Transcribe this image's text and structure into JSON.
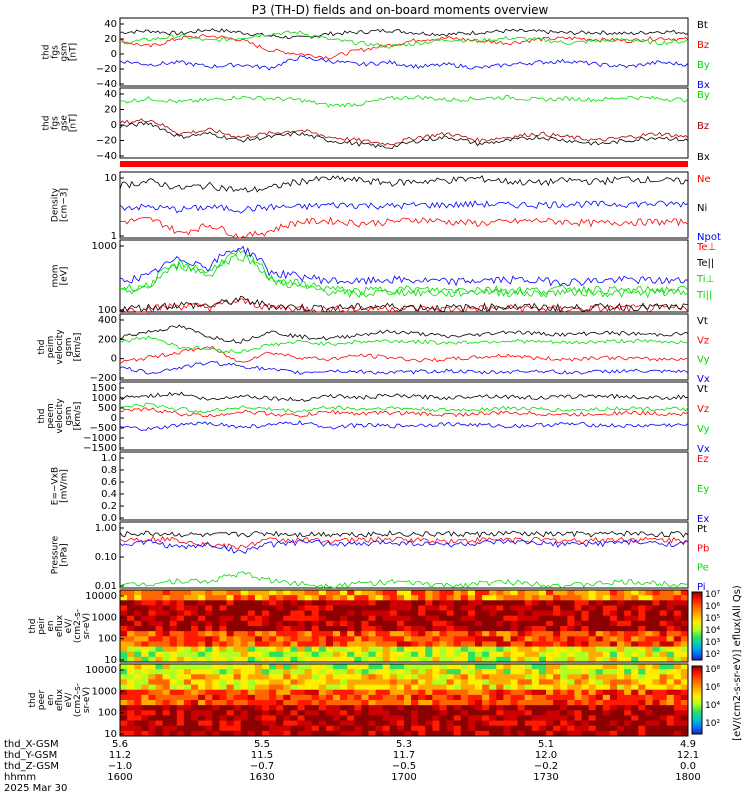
{
  "title": "P3 (TH-D) fields and on-board moments overview",
  "chart_data": [
    {
      "type": "line",
      "panel": "fgs_gsm",
      "ylabel": [
        "thd",
        "fgs",
        "gsm",
        "[nT]"
      ],
      "yticks": [
        "40",
        "20",
        "0",
        "−20",
        "−40"
      ],
      "ylim": [
        -45,
        50
      ],
      "series": [
        {
          "name": "Bt",
          "color": "#000000",
          "values": [
            30,
            32,
            28,
            34,
            30,
            25,
            22,
            28,
            30,
            33,
            29,
            27,
            30,
            32,
            31,
            29,
            30,
            28,
            31,
            30
          ]
        },
        {
          "name": "Bz",
          "color": "#ff0000",
          "values": [
            18,
            10,
            22,
            25,
            20,
            5,
            0,
            -5,
            5,
            12,
            20,
            22,
            18,
            15,
            20,
            22,
            20,
            18,
            22,
            20
          ]
        },
        {
          "name": "By",
          "color": "#00dd00",
          "values": [
            15,
            20,
            25,
            18,
            22,
            28,
            30,
            20,
            15,
            10,
            15,
            20,
            18,
            22,
            20,
            15,
            18,
            20,
            15,
            18
          ]
        },
        {
          "name": "Bx",
          "color": "#0000ff",
          "values": [
            -10,
            -15,
            -12,
            -18,
            -15,
            -20,
            -5,
            -10,
            -15,
            -12,
            -18,
            -15,
            -20,
            -15,
            -12,
            -10,
            -15,
            -18,
            -12,
            -15
          ]
        }
      ]
    },
    {
      "type": "line",
      "panel": "fgs_gse",
      "ylabel": [
        "thd",
        "fgs",
        "gse",
        "[nT]"
      ],
      "yticks": [
        "40",
        "20",
        "0",
        "−20",
        "−40"
      ],
      "ylim": [
        -55,
        45
      ],
      "series": [
        {
          "name": "By",
          "color": "#00dd00",
          "values": [
            25,
            30,
            25,
            28,
            32,
            30,
            28,
            20,
            22,
            30,
            32,
            28,
            30,
            32,
            28,
            30,
            28,
            32,
            30,
            28
          ]
        },
        {
          "name": "Bz",
          "color": "#aa0000",
          "values": [
            -5,
            0,
            -20,
            -15,
            -25,
            -20,
            -15,
            -25,
            -30,
            -35,
            -25,
            -20,
            -30,
            -25,
            -20,
            -25,
            -30,
            -25,
            -20,
            -25
          ]
        },
        {
          "name": "Bx",
          "color": "#000000",
          "values": [
            -10,
            -5,
            -25,
            -20,
            -30,
            -25,
            -20,
            -30,
            -35,
            -40,
            -30,
            -25,
            -35,
            -30,
            -25,
            -30,
            -35,
            -30,
            -25,
            -30
          ]
        }
      ]
    },
    {
      "type": "line",
      "panel": "density",
      "ylabel": [
        "Density",
        "[cm−3]"
      ],
      "yticks": [
        "10",
        "1"
      ],
      "scale": "log",
      "ylim": [
        0.3,
        40
      ],
      "series": [
        {
          "name": "Ne",
          "color": "#ff0000",
          "values": [
            1,
            1.2,
            0.4,
            0.8,
            0.3,
            0.5,
            1,
            1.1,
            0.9,
            1,
            1.2,
            1,
            0.9,
            1,
            1.1,
            1,
            0.9,
            1,
            1,
            1
          ]
        },
        {
          "name": "Ni",
          "color": "#000000",
          "values": [
            15,
            20,
            12,
            15,
            10,
            12,
            20,
            25,
            22,
            18,
            20,
            22,
            25,
            20,
            18,
            22,
            20,
            25,
            22,
            20
          ]
        },
        {
          "name": "Npot",
          "color": "#0000ff",
          "values": [
            3,
            3,
            2.5,
            3,
            2.5,
            3,
            3,
            3.5,
            3.5,
            3.2,
            3.5,
            3.5,
            3.8,
            3.5,
            3.6,
            3.8,
            3.7,
            3.8,
            3.8,
            3.8
          ]
        }
      ]
    },
    {
      "type": "line",
      "panel": "moments_temperature",
      "ylabel": [
        "mom",
        "[eV]"
      ],
      "yticks": [
        "1000",
        "100"
      ],
      "scale": "log",
      "ylim": [
        40,
        4000
      ],
      "series": [
        {
          "name": "Te⊥",
          "color": "#ff0000",
          "values": [
            45,
            50,
            60,
            55,
            80,
            55,
            50,
            48,
            50,
            52,
            50,
            48,
            50,
            52,
            50,
            48,
            50,
            52,
            50,
            50
          ]
        },
        {
          "name": "Te||",
          "color": "#000000",
          "values": [
            50,
            55,
            65,
            60,
            90,
            60,
            55,
            52,
            55,
            58,
            55,
            52,
            55,
            58,
            55,
            52,
            55,
            58,
            55,
            55
          ]
        },
        {
          "name": "Ti⊥",
          "color": "#00dd00",
          "values": [
            150,
            180,
            800,
            400,
            1500,
            300,
            200,
            150,
            120,
            150,
            140,
            130,
            150,
            140,
            130,
            150,
            140,
            130,
            140,
            140
          ]
        },
        {
          "name": "Ti||",
          "color": "#00dd00",
          "values": [
            180,
            220,
            900,
            500,
            1800,
            350,
            250,
            180,
            150,
            180,
            170,
            160,
            180,
            170,
            160,
            180,
            170,
            160,
            170,
            170
          ]
        },
        {
          "name": "",
          "color": "#0000ff",
          "values": [
            300,
            400,
            1200,
            700,
            2500,
            500,
            400,
            300,
            280,
            320,
            300,
            280,
            300,
            320,
            300,
            280,
            300,
            320,
            300,
            300
          ]
        }
      ]
    },
    {
      "type": "line",
      "panel": "peim_velocity",
      "ylabel": [
        "thd",
        "peim",
        "velocity",
        "gsm",
        "[km/s]"
      ],
      "yticks": [
        "400",
        "200",
        "0",
        "−200"
      ],
      "ylim": [
        -220,
        420
      ],
      "series": [
        {
          "name": "Vt",
          "color": "#000000",
          "values": [
            200,
            250,
            300,
            200,
            150,
            250,
            200,
            180,
            220,
            250,
            230,
            200,
            220,
            250,
            230,
            220,
            240,
            230,
            220,
            230
          ]
        },
        {
          "name": "Vz",
          "color": "#ff0000",
          "values": [
            -50,
            0,
            50,
            100,
            -50,
            50,
            0,
            -20,
            20,
            0,
            -30,
            -20,
            0,
            20,
            -10,
            -20,
            0,
            -10,
            -20,
            -10
          ]
        },
        {
          "name": "Vy",
          "color": "#00dd00",
          "values": [
            150,
            200,
            100,
            80,
            50,
            120,
            150,
            130,
            150,
            160,
            150,
            140,
            150,
            160,
            150,
            140,
            150,
            160,
            150,
            150
          ]
        },
        {
          "name": "Vx",
          "color": "#0000ff",
          "values": [
            -100,
            -150,
            -100,
            -50,
            -80,
            -120,
            -150,
            -130,
            -140,
            -150,
            -140,
            -130,
            -150,
            -140,
            -130,
            -150,
            -140,
            -130,
            -140,
            -140
          ]
        }
      ]
    },
    {
      "type": "line",
      "panel": "peem_velocity",
      "ylabel": [
        "thd",
        "peem",
        "velocity",
        "gsm",
        "[km/s]"
      ],
      "yticks": [
        "1500",
        "1000",
        "500",
        "0",
        "−500",
        "−1000",
        "−1500"
      ],
      "ylim": [
        -1500,
        1500
      ],
      "series": [
        {
          "name": "Vt",
          "color": "#000000",
          "values": [
            800,
            900,
            1000,
            700,
            900,
            800,
            700,
            900,
            800,
            900,
            850,
            800,
            900,
            850,
            800,
            850,
            900,
            850,
            800,
            850
          ]
        },
        {
          "name": "Vz",
          "color": "#ff0000",
          "values": [
            200,
            300,
            100,
            0,
            200,
            100,
            0,
            200,
            100,
            150,
            100,
            50,
            100,
            150,
            100,
            50,
            100,
            150,
            100,
            100
          ]
        },
        {
          "name": "Vy",
          "color": "#00dd00",
          "values": [
            400,
            500,
            300,
            200,
            400,
            300,
            200,
            400,
            300,
            350,
            300,
            250,
            300,
            350,
            300,
            250,
            300,
            350,
            300,
            300
          ]
        },
        {
          "name": "Vx",
          "color": "#0000ff",
          "values": [
            -500,
            -600,
            -400,
            -300,
            -500,
            -400,
            -300,
            -500,
            -400,
            -450,
            -400,
            -350,
            -400,
            -450,
            -400,
            -350,
            -400,
            -450,
            -400,
            -400
          ]
        }
      ]
    },
    {
      "type": "line",
      "panel": "e_vxb",
      "ylabel": [
        "E=−VxB",
        "[mV/m]"
      ],
      "yticks": [
        "1.0",
        "0.8",
        "0.6",
        "0.4",
        "0.2",
        "0.0"
      ],
      "ylim": [
        0,
        1
      ],
      "series": [
        {
          "name": "Ez",
          "color": "#ff0000",
          "values": []
        },
        {
          "name": "Ey",
          "color": "#00dd00",
          "values": []
        },
        {
          "name": "Ex",
          "color": "#0000ff",
          "values": []
        }
      ]
    },
    {
      "type": "line",
      "panel": "pressure",
      "ylabel": [
        "Pressure",
        "[nPa]"
      ],
      "yticks": [
        "1.00",
        "0.10",
        "0.01"
      ],
      "scale": "log",
      "ylim": [
        0.004,
        1.5
      ],
      "series": [
        {
          "name": "Pt",
          "color": "#000000",
          "values": [
            0.5,
            0.55,
            0.5,
            0.45,
            0.5,
            0.55,
            0.5,
            0.52,
            0.5,
            0.55,
            0.5,
            0.52,
            0.5,
            0.55,
            0.5,
            0.52,
            0.5,
            0.55,
            0.5,
            0.52
          ]
        },
        {
          "name": "Pb",
          "color": "#ff0000",
          "values": [
            0.3,
            0.35,
            0.3,
            0.2,
            0.15,
            0.3,
            0.3,
            0.28,
            0.3,
            0.32,
            0.3,
            0.28,
            0.3,
            0.32,
            0.3,
            0.28,
            0.3,
            0.32,
            0.3,
            0.3
          ]
        },
        {
          "name": "Pe",
          "color": "#00dd00",
          "values": [
            0.005,
            0.006,
            0.008,
            0.007,
            0.015,
            0.008,
            0.006,
            0.005,
            0.006,
            0.007,
            0.006,
            0.005,
            0.006,
            0.007,
            0.006,
            0.005,
            0.006,
            0.007,
            0.006,
            0.006
          ]
        },
        {
          "name": "Pi",
          "color": "#0000ff",
          "values": [
            0.2,
            0.25,
            0.15,
            0.2,
            0.1,
            0.2,
            0.25,
            0.22,
            0.2,
            0.25,
            0.22,
            0.2,
            0.22,
            0.25,
            0.22,
            0.2,
            0.22,
            0.25,
            0.22,
            0.22
          ]
        }
      ]
    },
    {
      "type": "heatmap",
      "panel": "peir_en_eflux",
      "ylabel": [
        "thd",
        "peir",
        "en",
        "eflux",
        "eV/",
        "(cm2-s-",
        "sr-eV)"
      ],
      "yticks": [
        "10000",
        "1000",
        "100",
        "10"
      ],
      "scale": "log"
    },
    {
      "type": "heatmap",
      "panel": "peer_en_eflux",
      "ylabel": [
        "thd",
        "peer",
        "en",
        "eflux",
        "eV/",
        "(cm2-s-",
        "sr-eV)"
      ],
      "yticks": [
        "10000",
        "1000",
        "100",
        "10"
      ],
      "scale": "log"
    }
  ],
  "colorbar": {
    "ticks_top": [
      "10⁷",
      "10⁶",
      "10⁵",
      "10⁴",
      "10³",
      "10²"
    ],
    "ticks_bottom": [
      "10⁸",
      "10⁶",
      "10⁴",
      "10²"
    ],
    "label": "[eV/(cm2-s-sr-eV)] eflux(All Qs)"
  },
  "xaxis": {
    "rows": [
      {
        "label": "thd_X-GSM",
        "values": [
          "5.6",
          "5.5",
          "5.3",
          "5.1",
          "4.9"
        ]
      },
      {
        "label": "thd_Y-GSM",
        "values": [
          "11.2",
          "11.5",
          "11.7",
          "12.0",
          "12.1"
        ]
      },
      {
        "label": "thd_Z-GSM",
        "values": [
          "−1.0",
          "−0.7",
          "−0.5",
          "−0.2",
          "0.0"
        ]
      },
      {
        "label": "hhmm",
        "values": [
          "1600",
          "1630",
          "1700",
          "1730",
          "1800"
        ]
      }
    ],
    "date": "2025 Mar 30"
  }
}
